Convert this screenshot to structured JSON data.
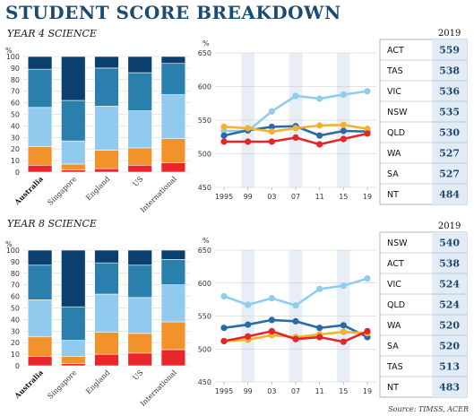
{
  "title": "STUDENT SCORE BREAKDOWN",
  "source": "Source: TIMSS, ACER",
  "colors": {
    "band1": "#e8262b",
    "band2": "#f2922a",
    "band3": "#90caee",
    "band4": "#2b7fac",
    "band5": "#0b3f6e",
    "blue_line": "#2b6aa8",
    "lightblue_line": "#8fcdee",
    "orange_line": "#f3b22b",
    "red_line": "#e3262b",
    "title": "#1b4a72",
    "shade": "#e7eef5"
  },
  "chart_data": [
    {
      "type": "bar",
      "section": "YEAR 4 SCIENCE",
      "ylabel": "%",
      "ylim": [
        0,
        100
      ],
      "yticks": [
        0,
        10,
        20,
        30,
        40,
        50,
        60,
        70,
        80,
        90,
        100
      ],
      "categories": [
        "Australia",
        "Singapore",
        "England",
        "US",
        "International"
      ],
      "highlight_category": "Australia",
      "series": [
        {
          "color": "#e8262b",
          "values": [
            6,
            2,
            3,
            6,
            8
          ]
        },
        {
          "color": "#f2922a",
          "values": [
            16,
            5,
            16,
            15,
            21
          ]
        },
        {
          "color": "#90caee",
          "values": [
            34,
            20,
            38,
            32,
            38
          ]
        },
        {
          "color": "#2b7fac",
          "values": [
            33,
            35,
            33,
            33,
            27
          ]
        },
        {
          "color": "#0b3f6e",
          "values": [
            11,
            38,
            10,
            14,
            6
          ]
        }
      ]
    },
    {
      "type": "line",
      "ylabel": "%",
      "x": [
        "1995",
        "99",
        "03",
        "07",
        "11",
        "15",
        "19"
      ],
      "ylim": [
        450,
        650
      ],
      "yticks": [
        450,
        500,
        550,
        600,
        650
      ],
      "shaded_columns": [
        "99",
        "07",
        "15"
      ],
      "series": [
        {
          "color": "#8fcdee",
          "values": [
            534,
            534,
            563,
            586,
            582,
            588,
            593
          ]
        },
        {
          "color": "#2b6aa8",
          "values": [
            527,
            535,
            540,
            541,
            527,
            534,
            533
          ]
        },
        {
          "color": "#f3b22b",
          "values": [
            540,
            538,
            533,
            538,
            542,
            543,
            537
          ]
        },
        {
          "color": "#e3262b",
          "values": [
            518,
            518,
            518,
            524,
            514,
            522,
            530
          ]
        }
      ]
    },
    {
      "type": "table",
      "header": "2019",
      "rows": [
        {
          "state": "ACT",
          "value": "559"
        },
        {
          "state": "TAS",
          "value": "538"
        },
        {
          "state": "VIC",
          "value": "536"
        },
        {
          "state": "NSW",
          "value": "535"
        },
        {
          "state": "QLD",
          "value": "530"
        },
        {
          "state": "WA",
          "value": "527"
        },
        {
          "state": "SA",
          "value": "527"
        },
        {
          "state": "NT",
          "value": "484"
        }
      ]
    },
    {
      "type": "bar",
      "section": "YEAR 8 SCIENCE",
      "ylabel": "%",
      "ylim": [
        0,
        100
      ],
      "yticks": [
        0,
        10,
        20,
        30,
        40,
        50,
        60,
        70,
        80,
        90,
        100
      ],
      "categories": [
        "Australia",
        "Singapore",
        "England",
        "US",
        "International"
      ],
      "highlight_category": "Australia",
      "series": [
        {
          "color": "#e8262b",
          "values": [
            8,
            2,
            10,
            11,
            14
          ]
        },
        {
          "color": "#f2922a",
          "values": [
            17,
            6,
            19,
            17,
            24
          ]
        },
        {
          "color": "#90caee",
          "values": [
            32,
            14,
            33,
            31,
            32
          ]
        },
        {
          "color": "#2b7fac",
          "values": [
            30,
            29,
            27,
            28,
            22
          ]
        },
        {
          "color": "#0b3f6e",
          "values": [
            13,
            49,
            11,
            13,
            8
          ]
        }
      ]
    },
    {
      "type": "line",
      "ylabel": "%",
      "x": [
        "1995",
        "99",
        "03",
        "07",
        "11",
        "15",
        "19"
      ],
      "ylim": [
        450,
        650
      ],
      "yticks": [
        450,
        500,
        550,
        600,
        650
      ],
      "shaded_columns": [
        "99",
        "07",
        "15"
      ],
      "series": [
        {
          "color": "#8fcdee",
          "values": [
            580,
            567,
            577,
            566,
            591,
            596,
            607
          ]
        },
        {
          "color": "#2b6aa8",
          "values": [
            532,
            537,
            544,
            542,
            532,
            536,
            518
          ]
        },
        {
          "color": "#f3b22b",
          "values": [
            512,
            514,
            521,
            518,
            522,
            526,
            524
          ]
        },
        {
          "color": "#e3262b",
          "values": [
            512,
            519,
            527,
            515,
            518,
            511,
            527
          ]
        }
      ]
    },
    {
      "type": "table",
      "header": "2019",
      "rows": [
        {
          "state": "NSW",
          "value": "540"
        },
        {
          "state": "ACT",
          "value": "538"
        },
        {
          "state": "VIC",
          "value": "524"
        },
        {
          "state": "QLD",
          "value": "524"
        },
        {
          "state": "WA",
          "value": "520"
        },
        {
          "state": "SA",
          "value": "520"
        },
        {
          "state": "TAS",
          "value": "513"
        },
        {
          "state": "NT",
          "value": "483"
        }
      ]
    }
  ]
}
